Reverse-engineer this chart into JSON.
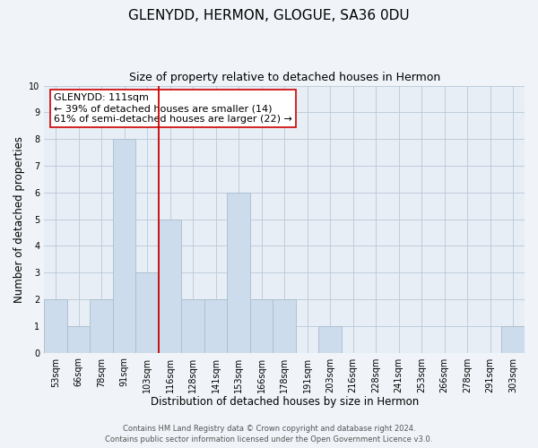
{
  "title": "GLENYDD, HERMON, GLOGUE, SA36 0DU",
  "subtitle": "Size of property relative to detached houses in Hermon",
  "xlabel": "Distribution of detached houses by size in Hermon",
  "ylabel": "Number of detached properties",
  "bin_labels": [
    "53sqm",
    "66sqm",
    "78sqm",
    "91sqm",
    "103sqm",
    "116sqm",
    "128sqm",
    "141sqm",
    "153sqm",
    "166sqm",
    "178sqm",
    "191sqm",
    "203sqm",
    "216sqm",
    "228sqm",
    "241sqm",
    "253sqm",
    "266sqm",
    "278sqm",
    "291sqm",
    "303sqm"
  ],
  "bar_heights": [
    2,
    1,
    2,
    8,
    3,
    5,
    2,
    2,
    6,
    2,
    2,
    0,
    1,
    0,
    0,
    0,
    0,
    0,
    0,
    0,
    1
  ],
  "bar_color": "#ccdcec",
  "bar_edgecolor": "#aabccc",
  "vline_x_index": 4.5,
  "vline_color": "#cc0000",
  "annotation_text": "GLENYDD: 111sqm\n← 39% of detached houses are smaller (14)\n61% of semi-detached houses are larger (22) →",
  "annotation_box_edgecolor": "#cc0000",
  "annotation_box_facecolor": "white",
  "ylim": [
    0,
    10
  ],
  "yticks": [
    0,
    1,
    2,
    3,
    4,
    5,
    6,
    7,
    8,
    9,
    10
  ],
  "footer_line1": "Contains HM Land Registry data © Crown copyright and database right 2024.",
  "footer_line2": "Contains public sector information licensed under the Open Government Licence v3.0.",
  "background_color": "#f0f4f8",
  "plot_background_color": "#e8eef5",
  "grid_color": "#b8c8d8",
  "title_fontsize": 11,
  "subtitle_fontsize": 9,
  "axis_label_fontsize": 8.5,
  "tick_fontsize": 7,
  "annotation_fontsize": 8,
  "footer_fontsize": 6
}
